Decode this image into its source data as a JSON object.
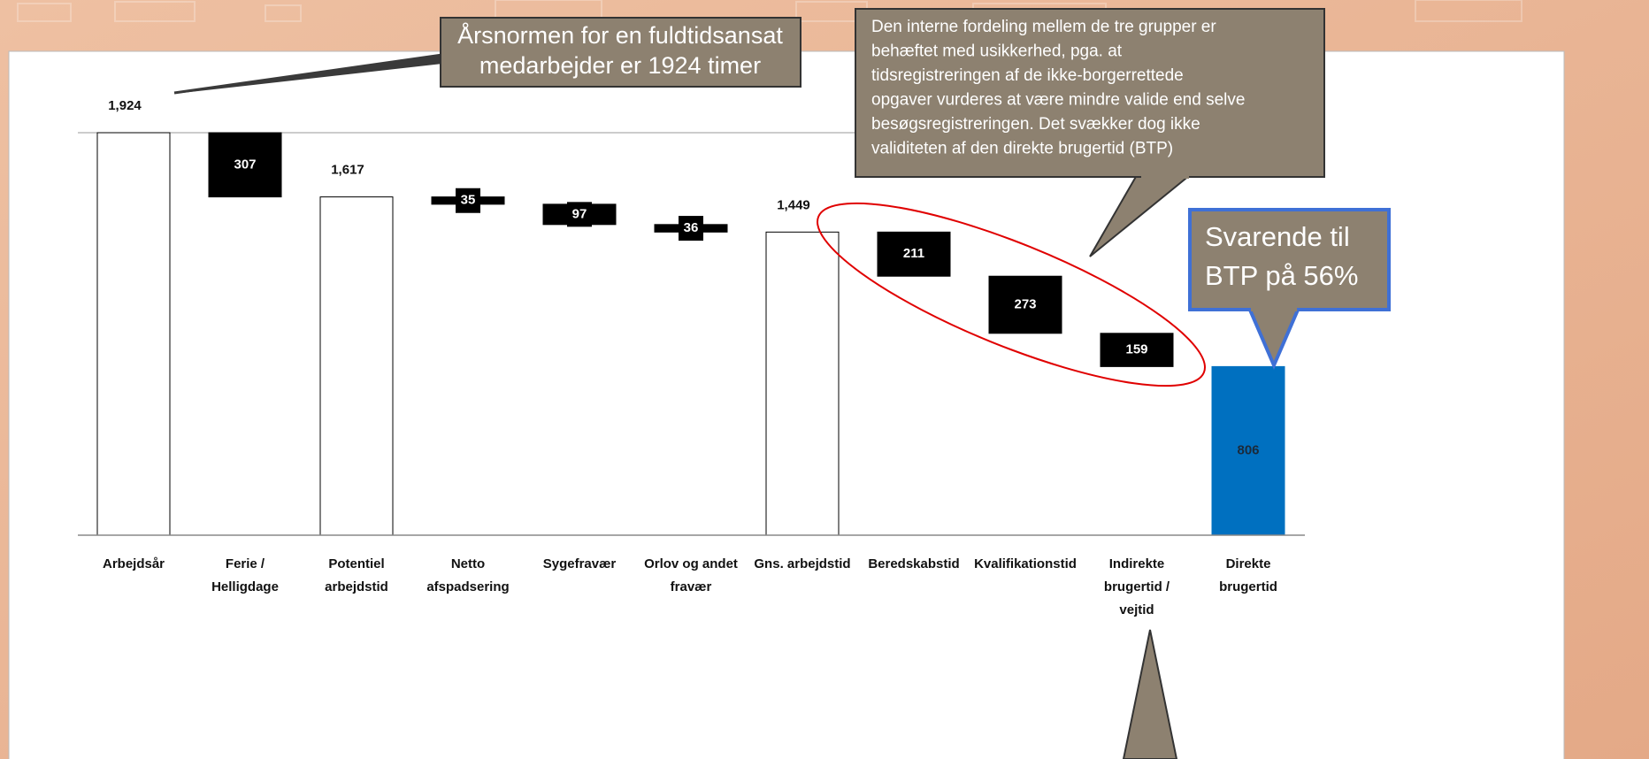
{
  "chart_data": {
    "type": "waterfall",
    "categories": [
      [
        "Arbejdsår"
      ],
      [
        "Ferie /",
        "Helligdage"
      ],
      [
        "Potentiel",
        "arbejdstid"
      ],
      [
        "Netto",
        "afspadsering"
      ],
      [
        "Sygefravær"
      ],
      [
        "Orlov og andet",
        "fravær"
      ],
      [
        "Gns. arbejdstid"
      ],
      [
        "Beredskabstid"
      ],
      [
        "Kvalifikationstid"
      ],
      [
        "Indirekte",
        "brugertid /",
        "vejtid"
      ],
      [
        "Direkte",
        "brugertid"
      ]
    ],
    "values": [
      1924,
      307,
      1617,
      35,
      97,
      36,
      1449,
      211,
      273,
      159,
      806
    ],
    "value_labels": [
      "1,924",
      "307",
      "1,617",
      "35",
      "97",
      "36",
      "1,449",
      "211",
      "273",
      "159",
      "806"
    ],
    "measures": [
      "total",
      "decrease",
      "total",
      "decrease",
      "decrease",
      "decrease",
      "total",
      "decrease",
      "decrease",
      "decrease",
      "total"
    ],
    "colors": [
      "#ffffff",
      "#000000",
      "#ffffff",
      "#000000",
      "#000000",
      "#000000",
      "#ffffff",
      "#000000",
      "#000000",
      "#000000",
      "#0070c0"
    ],
    "ylim": [
      0,
      1924
    ],
    "annotations": [
      {
        "text": [
          "Årsnormen for en fuldtidsansat",
          "medarbejder er 1924 timer"
        ]
      },
      {
        "text": [
          "Den interne fordeling mellem de tre grupper er",
          "behæftet med usikkerhed, pga. at",
          "tidsregistreringen af de ikke-borgerrettede",
          "opgaver vurderes at være mindre valide end selve",
          "besøgsregistreringen. Det svækker dog ikke",
          "validiteten af den direkte brugertid (BTP)"
        ]
      },
      {
        "text": [
          "Svarende til",
          "BTP på 56%"
        ]
      }
    ]
  }
}
